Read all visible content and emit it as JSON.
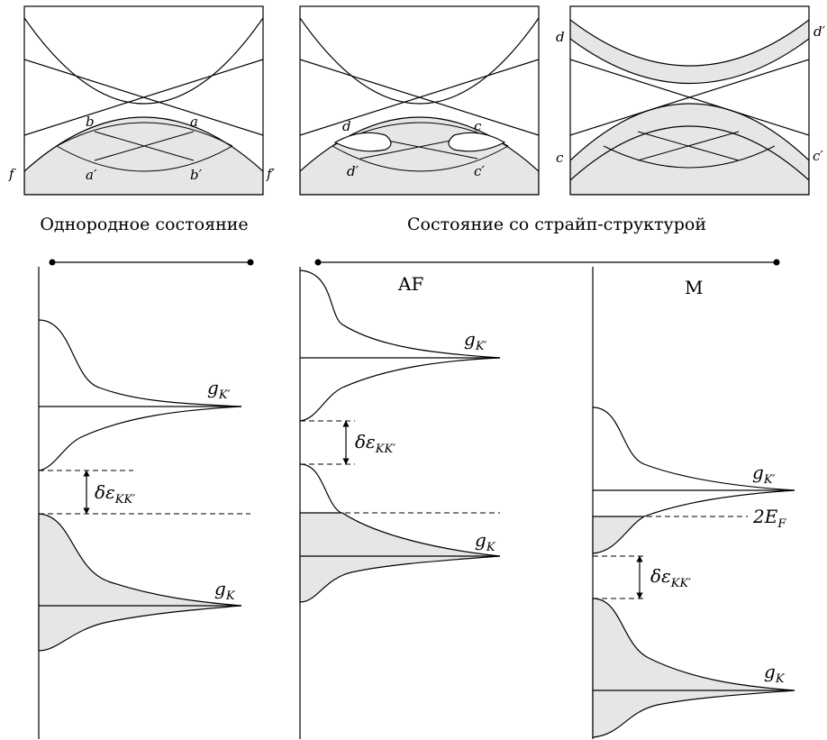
{
  "band_panels": {
    "panel1": {
      "labels": {
        "b": "b",
        "a": "a",
        "a_prime": "a′",
        "b_prime": "b′",
        "f": "f",
        "f_prime": "f′"
      }
    },
    "panel2": {
      "labels": {
        "d": "d",
        "c": "c",
        "d_prime": "d′",
        "c_prime": "c′"
      }
    },
    "panel3": {
      "labels": {
        "d": "d",
        "d_prime": "d′",
        "c": "c",
        "c_prime": "c′"
      }
    }
  },
  "captions": {
    "homogeneous": "Однородное состояние",
    "stripe": "Состояние со страйп-структурой"
  },
  "dos_panels": {
    "left": {
      "g_k_prime": "g",
      "g_k_prime_sub": "K′",
      "delta": "δε",
      "delta_sub": "KK′",
      "g_k": "g",
      "g_k_sub": "K"
    },
    "af": {
      "title": "AF",
      "g_k_prime": "g",
      "g_k_prime_sub": "K′",
      "delta": "δε",
      "delta_sub": "KK′",
      "g_k": "g",
      "g_k_sub": "K"
    },
    "m": {
      "title": "M",
      "g_k_prime": "g",
      "g_k_prime_sub": "K′",
      "fermi": "2E",
      "fermi_sub": "F",
      "delta": "δε",
      "delta_sub": "KK′",
      "g_k": "g",
      "g_k_sub": "K"
    }
  }
}
